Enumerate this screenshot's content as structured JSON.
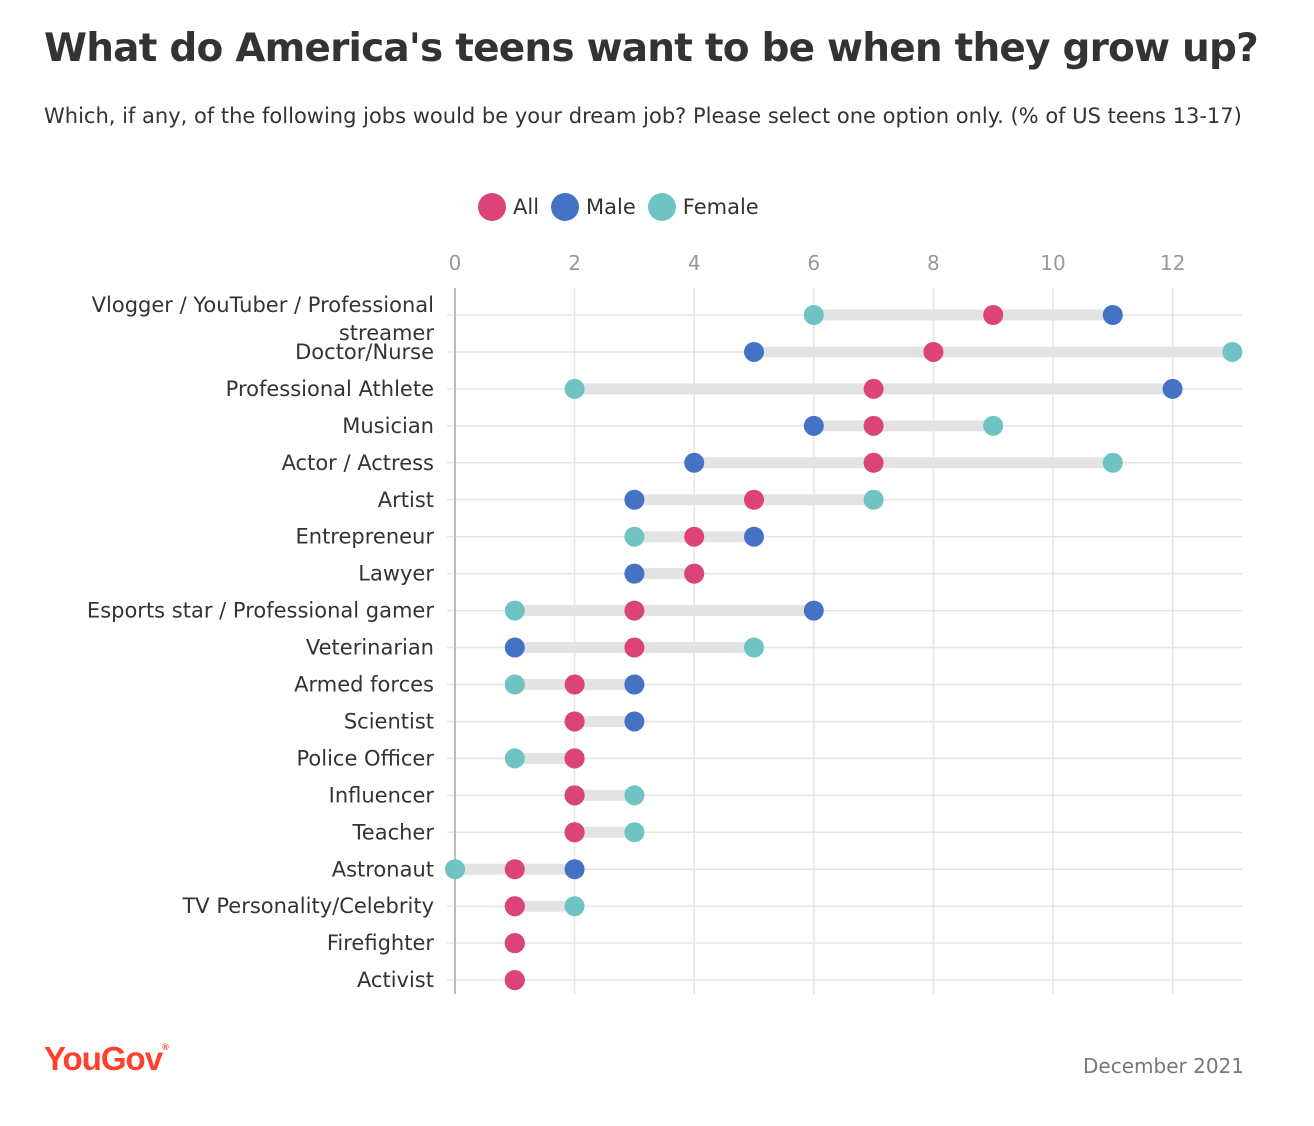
{
  "header": {
    "title": "What do America's teens want to be when they grow up?",
    "subtitle": "Which, if any, of the following jobs would be your dream job? Please select one option only. (% of US teens 13-17)"
  },
  "footer": {
    "brand": "YouGov",
    "brand_mark": "®",
    "date": "December 2021"
  },
  "colors": {
    "all": "#dc4379",
    "male": "#4472c4",
    "female": "#6fc3c3",
    "range": "#e3e3e3",
    "grid": "#e5e5e5",
    "axis": "#bbbbbb",
    "tick_text": "#999999"
  },
  "chart_data": {
    "type": "scatter",
    "subtype": "dot-range",
    "xlim": [
      0,
      13
    ],
    "xticks": [
      0,
      2,
      4,
      6,
      8,
      10,
      12
    ],
    "x_axis_position": "top",
    "grid": true,
    "legend_placement": "top-center",
    "categories": [
      "Vlogger / YouTuber / Professional streamer",
      "Doctor/Nurse",
      "Professional Athlete",
      "Musician",
      "Actor / Actress",
      "Artist",
      "Entrepreneur",
      "Lawyer",
      "Esports star / Professional gamer",
      "Veterinarian",
      "Armed forces",
      "Scientist",
      "Police Officer",
      "Influencer",
      "Teacher",
      "Astronaut",
      "TV Personality/Celebrity",
      "Firefighter",
      "Activist"
    ],
    "series": [
      {
        "name": "All",
        "key": "all",
        "values": [
          9,
          8,
          7,
          7,
          7,
          5,
          4,
          4,
          3,
          3,
          2,
          2,
          2,
          2,
          2,
          1,
          1,
          1,
          1
        ]
      },
      {
        "name": "Male",
        "key": "male",
        "values": [
          11,
          5,
          12,
          6,
          4,
          3,
          5,
          3,
          6,
          1,
          3,
          3,
          2,
          2,
          2,
          2,
          1,
          1,
          1
        ]
      },
      {
        "name": "Female",
        "key": "female",
        "values": [
          6,
          13,
          2,
          9,
          11,
          7,
          3,
          4,
          1,
          5,
          1,
          2,
          1,
          3,
          3,
          0,
          2,
          1,
          1
        ]
      }
    ]
  }
}
